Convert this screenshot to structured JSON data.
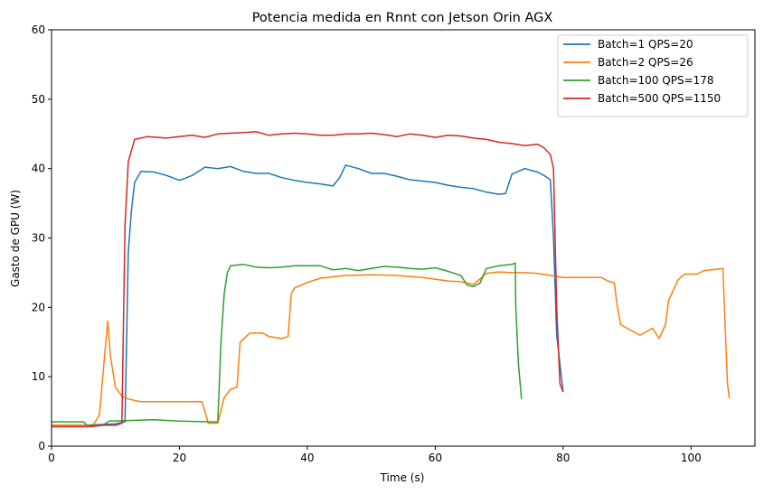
{
  "chart_data": {
    "type": "line",
    "title": "Potencia medida en Rnnt con Jetson Orin AGX",
    "xlabel": "Time (s)",
    "ylabel": "Gasto de GPU (W)",
    "xlim": [
      0,
      110
    ],
    "ylim": [
      0,
      60
    ],
    "xticks": [
      0,
      20,
      40,
      60,
      80,
      100
    ],
    "yticks": [
      0,
      10,
      20,
      30,
      40,
      50,
      60
    ],
    "grid": false,
    "legend_position": "top-right",
    "series": [
      {
        "name": "Batch=1 QPS=20",
        "color": "#1f77b4",
        "points": [
          [
            0,
            3.0
          ],
          [
            5,
            3.0
          ],
          [
            10,
            3.2
          ],
          [
            11.5,
            3.5
          ],
          [
            12,
            28
          ],
          [
            12.5,
            34
          ],
          [
            13,
            38
          ],
          [
            14,
            39.6
          ],
          [
            16,
            39.5
          ],
          [
            18,
            39
          ],
          [
            20,
            38.3
          ],
          [
            22,
            39
          ],
          [
            24,
            40.2
          ],
          [
            26,
            40
          ],
          [
            28,
            40.3
          ],
          [
            30,
            39.6
          ],
          [
            32,
            39.3
          ],
          [
            34,
            39.3
          ],
          [
            36,
            38.7
          ],
          [
            38,
            38.3
          ],
          [
            40,
            38
          ],
          [
            42,
            37.8
          ],
          [
            44,
            37.5
          ],
          [
            45,
            38.6
          ],
          [
            46,
            40.5
          ],
          [
            48,
            40
          ],
          [
            50,
            39.3
          ],
          [
            52,
            39.3
          ],
          [
            54,
            38.9
          ],
          [
            56,
            38.4
          ],
          [
            58,
            38.2
          ],
          [
            60,
            38.0
          ],
          [
            62,
            37.6
          ],
          [
            64,
            37.3
          ],
          [
            66,
            37.1
          ],
          [
            68,
            36.6
          ],
          [
            70,
            36.3
          ],
          [
            71,
            36.4
          ],
          [
            72,
            39.2
          ],
          [
            74,
            40
          ],
          [
            76,
            39.5
          ],
          [
            77,
            39
          ],
          [
            78,
            38.4
          ],
          [
            78.5,
            30
          ],
          [
            79,
            16
          ],
          [
            80,
            7.8
          ]
        ]
      },
      {
        "name": "Batch=2 QPS=26",
        "color": "#ff7f0e",
        "points": [
          [
            0,
            3.0
          ],
          [
            6.5,
            3.0
          ],
          [
            7.5,
            4.5
          ],
          [
            8.3,
            13
          ],
          [
            8.8,
            18
          ],
          [
            9.2,
            13
          ],
          [
            10,
            8.5
          ],
          [
            11,
            7.2
          ],
          [
            12,
            6.8
          ],
          [
            14,
            6.4
          ],
          [
            16,
            6.4
          ],
          [
            18,
            6.4
          ],
          [
            20,
            6.4
          ],
          [
            22,
            6.4
          ],
          [
            23.5,
            6.4
          ],
          [
            24,
            5
          ],
          [
            24.5,
            3.3
          ],
          [
            26,
            3.3
          ],
          [
            27,
            7
          ],
          [
            28,
            8.2
          ],
          [
            29,
            8.5
          ],
          [
            29.5,
            15
          ],
          [
            31,
            16.3
          ],
          [
            33,
            16.3
          ],
          [
            34,
            15.8
          ],
          [
            36,
            15.5
          ],
          [
            37,
            15.8
          ],
          [
            37.5,
            22
          ],
          [
            38,
            22.8
          ],
          [
            40,
            23.6
          ],
          [
            42,
            24.2
          ],
          [
            44,
            24.4
          ],
          [
            46,
            24.6
          ],
          [
            50,
            24.7
          ],
          [
            54,
            24.6
          ],
          [
            58,
            24.3
          ],
          [
            62,
            23.8
          ],
          [
            64,
            23.7
          ],
          [
            66,
            23.3
          ],
          [
            68,
            24.9
          ],
          [
            70,
            25.1
          ],
          [
            72,
            25.0
          ],
          [
            74,
            25.0
          ],
          [
            76,
            24.9
          ],
          [
            78,
            24.6
          ],
          [
            80,
            24.3
          ],
          [
            82,
            24.3
          ],
          [
            84,
            24.3
          ],
          [
            86,
            24.3
          ],
          [
            87,
            23.8
          ],
          [
            88,
            23.5
          ],
          [
            88.5,
            20
          ],
          [
            89,
            17.5
          ],
          [
            90,
            17
          ],
          [
            92,
            16
          ],
          [
            94,
            17
          ],
          [
            95,
            15.5
          ],
          [
            96,
            17.5
          ],
          [
            96.5,
            21
          ],
          [
            98,
            24
          ],
          [
            99,
            24.8
          ],
          [
            101,
            24.8
          ],
          [
            102,
            25.3
          ],
          [
            104,
            25.5
          ],
          [
            105,
            25.6
          ],
          [
            105.3,
            18
          ],
          [
            105.7,
            9
          ],
          [
            106,
            6.9
          ]
        ]
      },
      {
        "name": "Batch=100 QPS=178",
        "color": "#2ca02c",
        "points": [
          [
            0,
            3.5
          ],
          [
            5,
            3.5
          ],
          [
            5.5,
            3.0
          ],
          [
            8,
            3.0
          ],
          [
            9,
            3.6
          ],
          [
            12,
            3.7
          ],
          [
            16,
            3.8
          ],
          [
            20,
            3.6
          ],
          [
            25,
            3.5
          ],
          [
            26,
            3.5
          ],
          [
            26.5,
            15
          ],
          [
            27,
            22
          ],
          [
            27.5,
            25
          ],
          [
            28,
            26
          ],
          [
            30,
            26.2
          ],
          [
            32,
            25.8
          ],
          [
            34,
            25.7
          ],
          [
            36,
            25.8
          ],
          [
            38,
            26.0
          ],
          [
            40,
            26.0
          ],
          [
            42,
            26.0
          ],
          [
            44,
            25.4
          ],
          [
            46,
            25.6
          ],
          [
            48,
            25.3
          ],
          [
            50,
            25.6
          ],
          [
            52,
            25.9
          ],
          [
            54,
            25.8
          ],
          [
            56,
            25.6
          ],
          [
            58,
            25.5
          ],
          [
            60,
            25.7
          ],
          [
            62,
            25.2
          ],
          [
            64,
            24.6
          ],
          [
            65,
            23.2
          ],
          [
            66,
            23.0
          ],
          [
            67,
            23.5
          ],
          [
            68,
            25.6
          ],
          [
            70,
            26.0
          ],
          [
            72,
            26.2
          ],
          [
            72.5,
            26.4
          ],
          [
            72.6,
            20
          ],
          [
            73,
            12
          ],
          [
            73.5,
            6.8
          ]
        ]
      },
      {
        "name": "Batch=500 QPS=1150",
        "color": "#d62728",
        "points": [
          [
            0,
            2.8
          ],
          [
            6,
            2.8
          ],
          [
            8,
            3.0
          ],
          [
            10,
            3.0
          ],
          [
            11,
            3.3
          ],
          [
            11.5,
            32
          ],
          [
            12,
            41
          ],
          [
            13,
            44.2
          ],
          [
            15,
            44.6
          ],
          [
            18,
            44.4
          ],
          [
            20,
            44.6
          ],
          [
            22,
            44.8
          ],
          [
            24,
            44.5
          ],
          [
            26,
            45
          ],
          [
            28,
            45.1
          ],
          [
            30,
            45.2
          ],
          [
            32,
            45.3
          ],
          [
            34,
            44.8
          ],
          [
            36,
            45
          ],
          [
            38,
            45.1
          ],
          [
            40,
            45
          ],
          [
            42,
            44.8
          ],
          [
            44,
            44.8
          ],
          [
            46,
            45
          ],
          [
            48,
            45
          ],
          [
            50,
            45.1
          ],
          [
            52,
            44.9
          ],
          [
            54,
            44.6
          ],
          [
            56,
            45
          ],
          [
            58,
            44.8
          ],
          [
            60,
            44.5
          ],
          [
            62,
            44.8
          ],
          [
            64,
            44.7
          ],
          [
            66,
            44.4
          ],
          [
            68,
            44.2
          ],
          [
            70,
            43.8
          ],
          [
            72,
            43.6
          ],
          [
            74,
            43.3
          ],
          [
            76,
            43.5
          ],
          [
            77,
            43
          ],
          [
            78,
            42
          ],
          [
            78.5,
            40
          ],
          [
            79,
            20
          ],
          [
            79.5,
            9
          ],
          [
            80,
            7.8
          ]
        ]
      }
    ]
  }
}
